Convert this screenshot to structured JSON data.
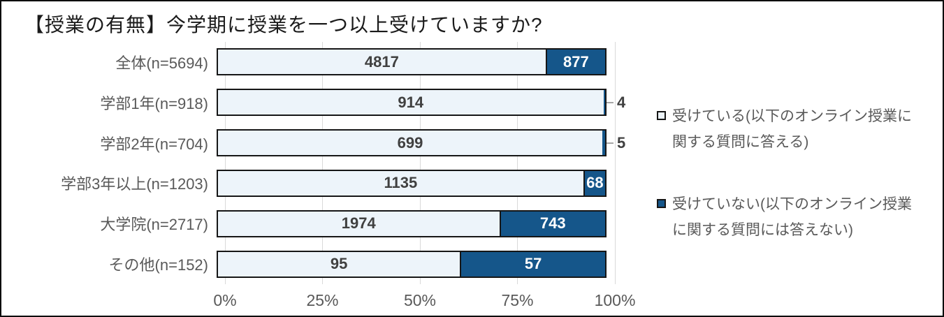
{
  "chart_data": {
    "type": "bar",
    "subtype": "horizontal-100-percent-stacked",
    "title": "【授業の有無】今学期に授業を一つ以上受けていますか?",
    "categories": [
      "全体(n=5694)",
      "学部1年(n=918)",
      "学部2年(n=704)",
      "学部3年以上(n=1203)",
      "大学院(n=2717)",
      "その他(n=152)"
    ],
    "series": [
      {
        "name": "受けている(以下のオンライン授業に関する質問に答える)",
        "color": "#edf4fa",
        "values": [
          4817,
          914,
          699,
          1135,
          1974,
          95
        ]
      },
      {
        "name": "受けていない(以下のオンライン授業に関する質問には答えない)",
        "color": "#15568a",
        "values": [
          877,
          4,
          5,
          68,
          743,
          57
        ]
      }
    ],
    "x_ticks": [
      "0%",
      "25%",
      "50%",
      "75%",
      "100%"
    ],
    "x_tick_percents": [
      0,
      25,
      50,
      75,
      100
    ],
    "xlim": [
      0,
      100
    ],
    "grid": true,
    "legend_position": "right",
    "colors": {
      "bar_border": "#161616",
      "gridline": "#d9d9d9",
      "axis_text": "#595959",
      "value_text_light": "#404040",
      "value_text_dark": "#ffffff",
      "leader_line": "#a6a6a6"
    }
  }
}
